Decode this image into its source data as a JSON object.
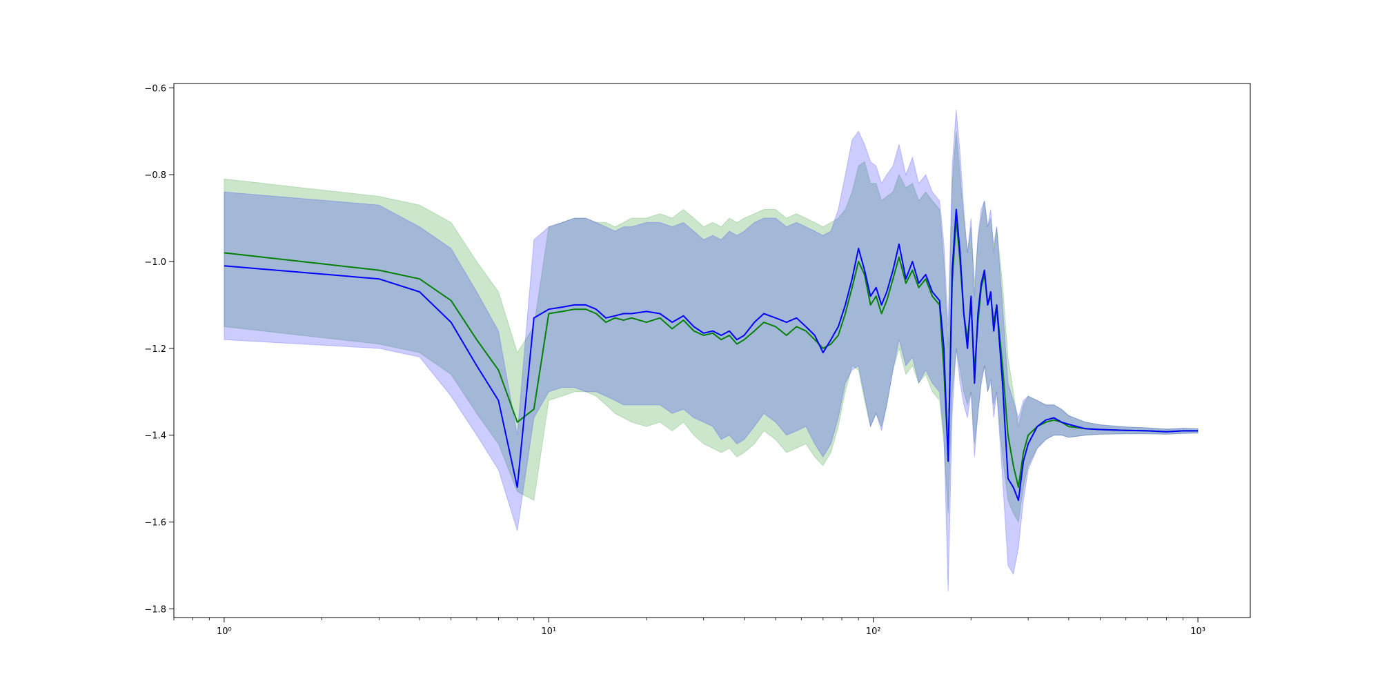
{
  "chart_data": {
    "type": "line",
    "title": "",
    "xlabel": "",
    "ylabel": "",
    "xscale": "log",
    "xlim": [
      0.7,
      1450
    ],
    "ylim": [
      -1.82,
      -0.59
    ],
    "grid": false,
    "legend": "none",
    "xticks": [
      {
        "value": 1,
        "label": "10⁰"
      },
      {
        "value": 10,
        "label": "10¹"
      },
      {
        "value": 100,
        "label": "10²"
      },
      {
        "value": 1000,
        "label": "10³"
      }
    ],
    "yticks": [
      {
        "value": -0.6,
        "label": "−0.6"
      },
      {
        "value": -0.8,
        "label": "−0.8"
      },
      {
        "value": -1.0,
        "label": "−1.0"
      },
      {
        "value": -1.2,
        "label": "−1.2"
      },
      {
        "value": -1.4,
        "label": "−1.4"
      },
      {
        "value": -1.6,
        "label": "−1.6"
      },
      {
        "value": -1.8,
        "label": "−1.8"
      }
    ],
    "series": [
      {
        "color": "#008000",
        "band_color": "#008000",
        "band_opacity": 0.2,
        "x": [
          1,
          3,
          4,
          5,
          6,
          7,
          8,
          9,
          10,
          11,
          12,
          13,
          14,
          15,
          16,
          17,
          18,
          20,
          22,
          24,
          26,
          28,
          30,
          32,
          34,
          36,
          38,
          40,
          43,
          46,
          50,
          54,
          58,
          62,
          66,
          70,
          74,
          78,
          82,
          86,
          90,
          94,
          98,
          102,
          106,
          110,
          115,
          120,
          126,
          132,
          138,
          145,
          152,
          160,
          165,
          170,
          175,
          180,
          185,
          190,
          195,
          200,
          205,
          210,
          215,
          220,
          225,
          230,
          235,
          240,
          250,
          260,
          270,
          280,
          290,
          300,
          320,
          340,
          360,
          380,
          400,
          450,
          500,
          600,
          700,
          800,
          900,
          1000
        ],
        "y": [
          -0.98,
          -1.02,
          -1.04,
          -1.09,
          -1.18,
          -1.25,
          -1.37,
          -1.34,
          -1.12,
          -1.115,
          -1.11,
          -1.11,
          -1.12,
          -1.14,
          -1.13,
          -1.135,
          -1.13,
          -1.14,
          -1.13,
          -1.155,
          -1.135,
          -1.16,
          -1.17,
          -1.165,
          -1.18,
          -1.17,
          -1.19,
          -1.18,
          -1.16,
          -1.14,
          -1.15,
          -1.17,
          -1.15,
          -1.16,
          -1.18,
          -1.2,
          -1.19,
          -1.17,
          -1.12,
          -1.06,
          -1.0,
          -1.03,
          -1.1,
          -1.08,
          -1.12,
          -1.09,
          -1.04,
          -0.99,
          -1.05,
          -1.02,
          -1.06,
          -1.04,
          -1.08,
          -1.1,
          -1.25,
          -1.45,
          -1.05,
          -0.9,
          -1.0,
          -1.12,
          -1.18,
          -1.1,
          -1.25,
          -1.14,
          -1.06,
          -1.03,
          -1.1,
          -1.08,
          -1.14,
          -1.1,
          -1.24,
          -1.4,
          -1.47,
          -1.52,
          -1.44,
          -1.4,
          -1.38,
          -1.37,
          -1.365,
          -1.37,
          -1.38,
          -1.385,
          -1.387,
          -1.389,
          -1.39,
          -1.392,
          -1.39,
          -1.39
        ],
        "band_low": [
          -1.15,
          -1.19,
          -1.21,
          -1.26,
          -1.35,
          -1.42,
          -1.53,
          -1.55,
          -1.32,
          -1.31,
          -1.3,
          -1.3,
          -1.31,
          -1.33,
          -1.35,
          -1.36,
          -1.37,
          -1.38,
          -1.37,
          -1.39,
          -1.37,
          -1.4,
          -1.42,
          -1.43,
          -1.44,
          -1.43,
          -1.45,
          -1.44,
          -1.42,
          -1.39,
          -1.41,
          -1.44,
          -1.43,
          -1.42,
          -1.45,
          -1.47,
          -1.44,
          -1.38,
          -1.3,
          -1.24,
          -1.25,
          -1.32,
          -1.38,
          -1.35,
          -1.38,
          -1.33,
          -1.25,
          -1.2,
          -1.26,
          -1.24,
          -1.28,
          -1.26,
          -1.3,
          -1.32,
          -1.42,
          -1.58,
          -1.3,
          -1.2,
          -1.25,
          -1.3,
          -1.33,
          -1.3,
          -1.42,
          -1.35,
          -1.28,
          -1.24,
          -1.3,
          -1.28,
          -1.33,
          -1.3,
          -1.45,
          -1.55,
          -1.58,
          -1.6,
          -1.52,
          -1.47,
          -1.43,
          -1.41,
          -1.4,
          -1.4,
          -1.405,
          -1.4,
          -1.398,
          -1.397,
          -1.397,
          -1.398,
          -1.396,
          -1.395
        ],
        "band_high": [
          -0.81,
          -0.85,
          -0.87,
          -0.91,
          -1.0,
          -1.07,
          -1.21,
          -1.15,
          -0.92,
          -0.91,
          -0.9,
          -0.9,
          -0.91,
          -0.91,
          -0.92,
          -0.91,
          -0.9,
          -0.9,
          -0.89,
          -0.9,
          -0.88,
          -0.9,
          -0.92,
          -0.91,
          -0.92,
          -0.9,
          -0.91,
          -0.9,
          -0.89,
          -0.88,
          -0.88,
          -0.9,
          -0.89,
          -0.9,
          -0.91,
          -0.92,
          -0.91,
          -0.9,
          -0.88,
          -0.84,
          -0.78,
          -0.77,
          -0.82,
          -0.82,
          -0.86,
          -0.85,
          -0.84,
          -0.8,
          -0.83,
          -0.82,
          -0.86,
          -0.84,
          -0.86,
          -0.88,
          -1.0,
          -1.2,
          -0.82,
          -0.7,
          -0.8,
          -0.9,
          -0.98,
          -0.92,
          -1.05,
          -0.95,
          -0.9,
          -0.86,
          -0.92,
          -0.9,
          -0.96,
          -0.92,
          -1.05,
          -1.22,
          -1.3,
          -1.38,
          -1.33,
          -1.31,
          -1.32,
          -1.33,
          -1.33,
          -1.34,
          -1.355,
          -1.37,
          -1.376,
          -1.381,
          -1.383,
          -1.386,
          -1.384,
          -1.385
        ]
      },
      {
        "color": "#0000ff",
        "band_color": "#0000ff",
        "band_opacity": 0.2,
        "x": [
          1,
          3,
          4,
          5,
          6,
          7,
          8,
          9,
          10,
          11,
          12,
          13,
          14,
          15,
          16,
          17,
          18,
          20,
          22,
          24,
          26,
          28,
          30,
          32,
          34,
          36,
          38,
          40,
          43,
          46,
          50,
          54,
          58,
          62,
          66,
          70,
          74,
          78,
          82,
          86,
          90,
          94,
          98,
          102,
          106,
          110,
          115,
          120,
          126,
          132,
          138,
          145,
          152,
          160,
          165,
          170,
          175,
          180,
          185,
          190,
          195,
          200,
          205,
          210,
          215,
          220,
          225,
          230,
          235,
          240,
          250,
          260,
          270,
          280,
          290,
          300,
          320,
          340,
          360,
          380,
          400,
          450,
          500,
          600,
          700,
          800,
          900,
          1000
        ],
        "y": [
          -1.01,
          -1.04,
          -1.07,
          -1.14,
          -1.24,
          -1.32,
          -1.52,
          -1.13,
          -1.11,
          -1.105,
          -1.1,
          -1.1,
          -1.11,
          -1.13,
          -1.125,
          -1.12,
          -1.12,
          -1.115,
          -1.12,
          -1.14,
          -1.125,
          -1.15,
          -1.165,
          -1.16,
          -1.17,
          -1.16,
          -1.18,
          -1.17,
          -1.14,
          -1.12,
          -1.13,
          -1.14,
          -1.13,
          -1.15,
          -1.17,
          -1.21,
          -1.18,
          -1.15,
          -1.1,
          -1.04,
          -0.97,
          -1.02,
          -1.08,
          -1.06,
          -1.1,
          -1.07,
          -1.02,
          -0.96,
          -1.04,
          -1.0,
          -1.05,
          -1.03,
          -1.07,
          -1.09,
          -1.2,
          -1.46,
          -1.02,
          -0.88,
          -0.98,
          -1.12,
          -1.2,
          -1.08,
          -1.28,
          -1.12,
          -1.05,
          -1.02,
          -1.1,
          -1.07,
          -1.16,
          -1.1,
          -1.28,
          -1.5,
          -1.52,
          -1.55,
          -1.46,
          -1.42,
          -1.38,
          -1.365,
          -1.36,
          -1.37,
          -1.375,
          -1.385,
          -1.387,
          -1.389,
          -1.39,
          -1.392,
          -1.39,
          -1.39
        ],
        "band_low": [
          -1.18,
          -1.2,
          -1.22,
          -1.31,
          -1.4,
          -1.48,
          -1.62,
          -1.36,
          -1.3,
          -1.29,
          -1.29,
          -1.3,
          -1.3,
          -1.31,
          -1.32,
          -1.33,
          -1.33,
          -1.33,
          -1.33,
          -1.35,
          -1.34,
          -1.36,
          -1.37,
          -1.38,
          -1.41,
          -1.4,
          -1.42,
          -1.41,
          -1.38,
          -1.35,
          -1.37,
          -1.4,
          -1.39,
          -1.38,
          -1.42,
          -1.45,
          -1.42,
          -1.36,
          -1.28,
          -1.25,
          -1.24,
          -1.31,
          -1.38,
          -1.35,
          -1.39,
          -1.33,
          -1.25,
          -1.18,
          -1.24,
          -1.22,
          -1.28,
          -1.25,
          -1.28,
          -1.3,
          -1.4,
          -1.76,
          -1.35,
          -1.2,
          -1.28,
          -1.33,
          -1.36,
          -1.3,
          -1.45,
          -1.35,
          -1.28,
          -1.24,
          -1.3,
          -1.27,
          -1.36,
          -1.3,
          -1.5,
          -1.7,
          -1.72,
          -1.66,
          -1.55,
          -1.48,
          -1.43,
          -1.41,
          -1.4,
          -1.4,
          -1.405,
          -1.4,
          -1.398,
          -1.397,
          -1.397,
          -1.398,
          -1.396,
          -1.395
        ],
        "band_high": [
          -0.84,
          -0.87,
          -0.92,
          -0.97,
          -1.07,
          -1.16,
          -1.4,
          -0.95,
          -0.92,
          -0.91,
          -0.9,
          -0.9,
          -0.91,
          -0.92,
          -0.93,
          -0.92,
          -0.92,
          -0.91,
          -0.91,
          -0.92,
          -0.91,
          -0.93,
          -0.95,
          -0.94,
          -0.95,
          -0.93,
          -0.94,
          -0.93,
          -0.91,
          -0.9,
          -0.9,
          -0.92,
          -0.91,
          -0.92,
          -0.93,
          -0.94,
          -0.93,
          -0.88,
          -0.8,
          -0.72,
          -0.7,
          -0.73,
          -0.77,
          -0.78,
          -0.82,
          -0.8,
          -0.78,
          -0.73,
          -0.8,
          -0.76,
          -0.82,
          -0.8,
          -0.84,
          -0.86,
          -0.96,
          -1.15,
          -0.78,
          -0.65,
          -0.75,
          -0.88,
          -0.98,
          -0.9,
          -1.08,
          -0.94,
          -0.88,
          -0.86,
          -0.92,
          -0.88,
          -0.98,
          -0.92,
          -1.1,
          -1.28,
          -1.32,
          -1.36,
          -1.32,
          -1.31,
          -1.32,
          -1.33,
          -1.33,
          -1.34,
          -1.355,
          -1.37,
          -1.376,
          -1.381,
          -1.383,
          -1.386,
          -1.384,
          -1.385
        ]
      }
    ]
  }
}
